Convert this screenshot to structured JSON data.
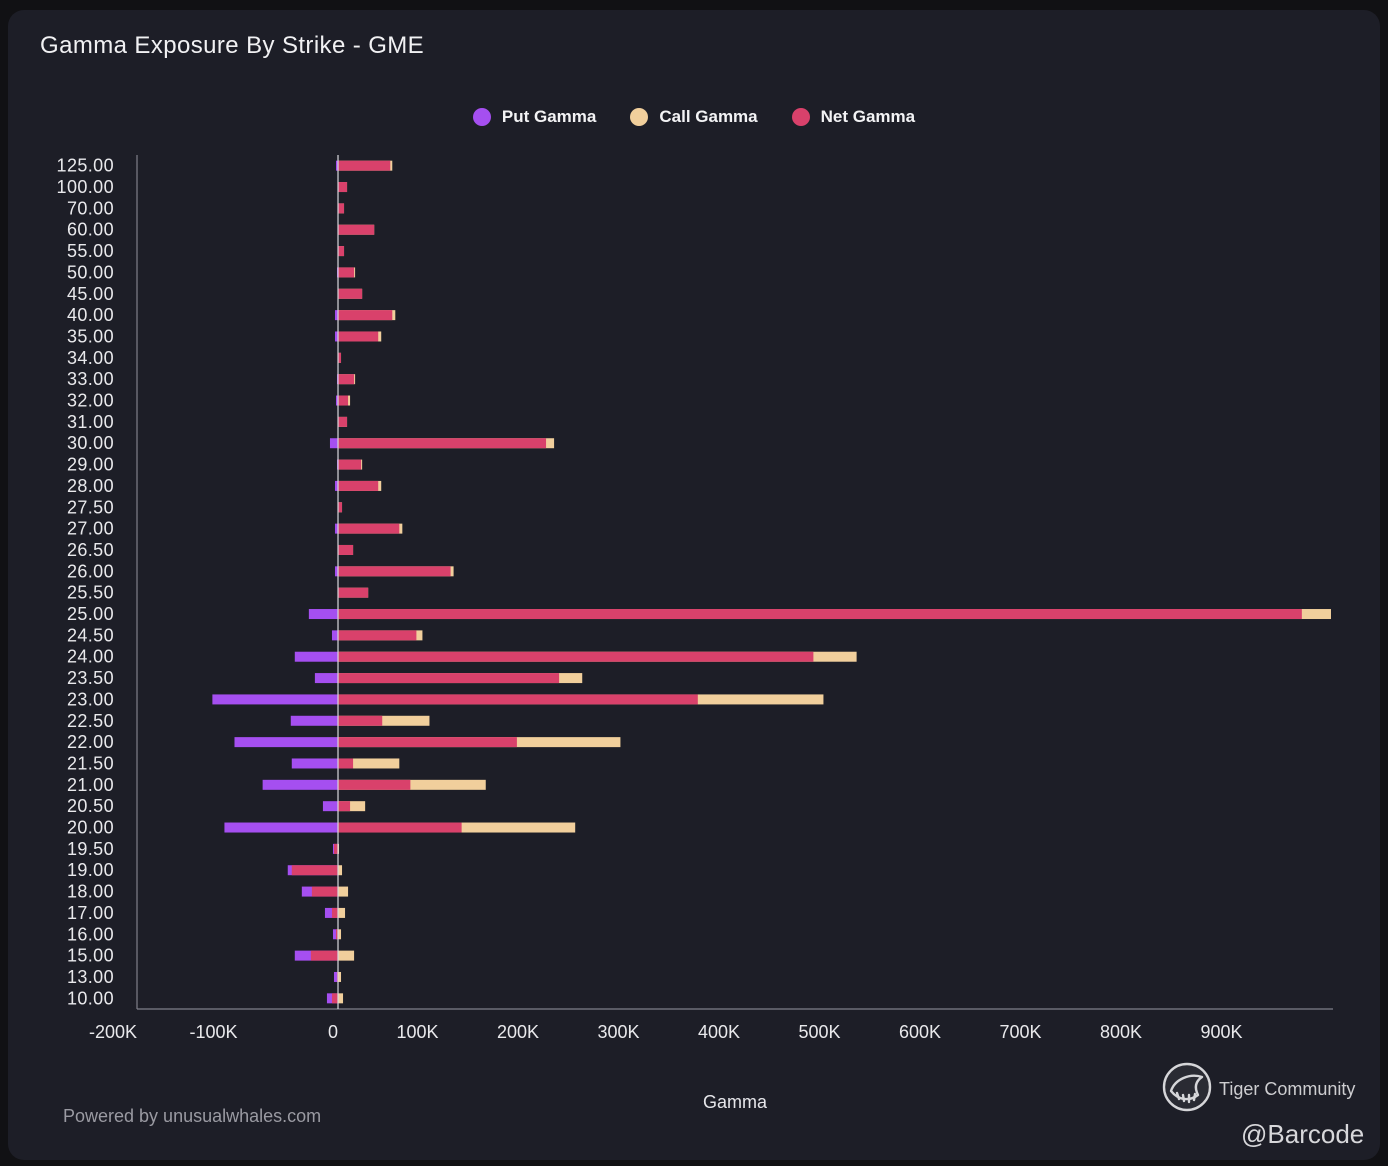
{
  "chart_data": {
    "type": "bar",
    "title": "Gamma Exposure By Strike - GME",
    "xlabel": "Gamma",
    "xlim": [
      -200000,
      990000
    ],
    "xticks": [
      -200000,
      -100000,
      0,
      100000,
      200000,
      300000,
      400000,
      500000,
      600000,
      700000,
      800000,
      900000
    ],
    "xtick_labels": [
      "-200K",
      "-100K",
      "0",
      "100K",
      "200K",
      "300K",
      "400K",
      "500K",
      "600K",
      "700K",
      "800K",
      "900K"
    ],
    "categories": [
      "125.00",
      "100.00",
      "70.00",
      "60.00",
      "55.00",
      "50.00",
      "45.00",
      "40.00",
      "35.00",
      "34.00",
      "33.00",
      "32.00",
      "31.00",
      "30.00",
      "29.00",
      "28.00",
      "27.50",
      "27.00",
      "26.50",
      "26.00",
      "25.50",
      "25.00",
      "24.50",
      "24.00",
      "23.50",
      "23.00",
      "22.50",
      "22.00",
      "21.50",
      "21.00",
      "20.50",
      "20.00",
      "19.50",
      "19.00",
      "18.00",
      "17.00",
      "16.00",
      "15.00",
      "13.00",
      "10.00"
    ],
    "series": [
      {
        "name": "Put Gamma",
        "color": "#a54ff0",
        "values": [
          -2000,
          0,
          0,
          0,
          0,
          -1000,
          0,
          -3000,
          -3000,
          0,
          -1000,
          -2000,
          0,
          -8000,
          -1000,
          -3000,
          0,
          -3000,
          0,
          -3000,
          0,
          -29000,
          -6000,
          -43000,
          -23000,
          -125000,
          -47000,
          -103000,
          -46000,
          -75000,
          -15000,
          -113000,
          -5000,
          -50000,
          -36000,
          -13000,
          -5000,
          -43000,
          -4000,
          -11000
        ]
      },
      {
        "name": "Call Gamma",
        "color": "#f1cf9c",
        "values": [
          54000,
          9000,
          6000,
          36000,
          6000,
          17000,
          24000,
          57000,
          43000,
          3000,
          17000,
          12000,
          9000,
          215000,
          24000,
          43000,
          4000,
          64000,
          15000,
          115000,
          30000,
          988000,
          84000,
          516000,
          243000,
          483000,
          91000,
          281000,
          61000,
          147000,
          27000,
          236000,
          1000,
          4000,
          10000,
          7000,
          3000,
          16000,
          3000,
          5000
        ]
      },
      {
        "name": "Net Gamma",
        "color": "#d9416b",
        "values": [
          52000,
          9000,
          6000,
          36000,
          6000,
          16000,
          24000,
          54000,
          40000,
          3000,
          16000,
          10000,
          9000,
          207000,
          23000,
          40000,
          4000,
          61000,
          15000,
          112000,
          30000,
          959000,
          78000,
          473000,
          220000,
          358000,
          44000,
          178000,
          15000,
          72000,
          12000,
          123000,
          -4000,
          -46000,
          -26000,
          -6000,
          -2000,
          -27000,
          -1000,
          -6000
        ]
      }
    ],
    "grid": false
  },
  "footer": {
    "powered_by": "Powered by unusualwhales.com"
  },
  "watermark": {
    "brand": "Tiger Community",
    "handle": "@Barcode"
  }
}
